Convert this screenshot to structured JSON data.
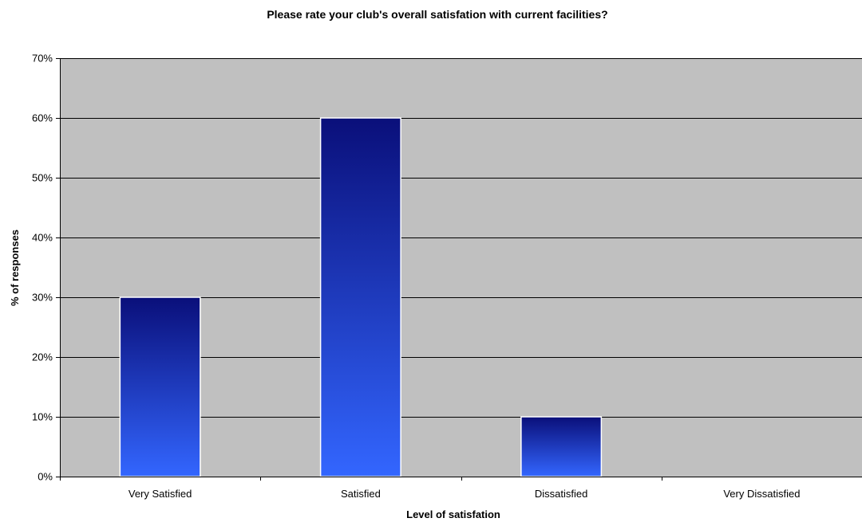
{
  "chart_data": {
    "type": "bar",
    "title": "Please rate your club's overall satisfation with current facilities?",
    "xlabel": "Level of satisfation",
    "ylabel": "% of responses",
    "categories": [
      "Very Satisfied",
      "Satisfied",
      "Dissatisfied",
      "Very Dissatisfied"
    ],
    "values": [
      30,
      60,
      10,
      0
    ],
    "value_unit": "%",
    "ylim": [
      0,
      70
    ],
    "yticks": [
      0,
      10,
      20,
      30,
      40,
      50,
      60,
      70
    ],
    "ytick_labels": [
      "0%",
      "10%",
      "20%",
      "30%",
      "40%",
      "50%",
      "60%",
      "70%"
    ],
    "grid": true,
    "legend": "none"
  },
  "colors": {
    "plot_background": "#c0c0c0",
    "bar_top": "#0a0f7a",
    "bar_bottom": "#3366ff",
    "bar_border": "#ffffff",
    "gridline": "#000000"
  }
}
